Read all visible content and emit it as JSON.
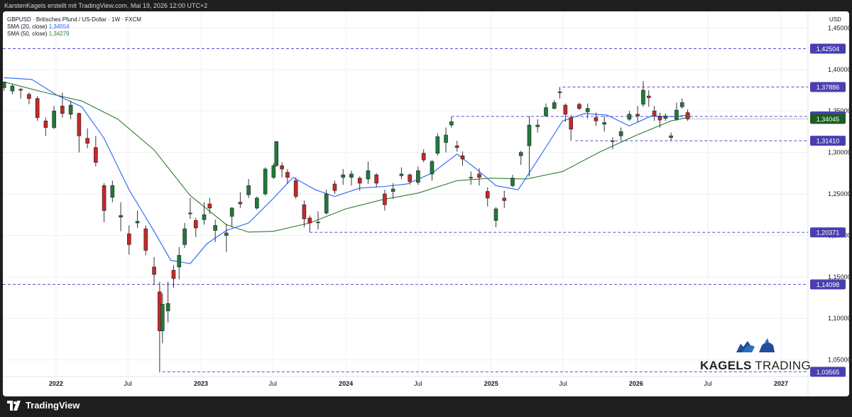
{
  "topbar": {
    "text": "KarstenKagels erstellt mit TradingView.com, Mai 19, 2026 12:00 UTC+2"
  },
  "legend": {
    "title": "GBPUSD · Britisches Pfund / US-Dollar · 1W · FXCM",
    "sma20_label": "SMA (20, close)",
    "sma20_value": "1,34554",
    "sma50_label": "SMA (50, close)",
    "sma50_value": "1,34279"
  },
  "brand": {
    "part1": "KAGELS",
    "part2": "TRADING"
  },
  "footer": {
    "logo_text": "TradingView"
  },
  "colors": {
    "up": "#26a69a",
    "down": "#ef5350",
    "candle_up": "#1f7a3a",
    "candle_down": "#c62828",
    "sma20": "#2962ff",
    "sma50": "#2e7d32",
    "level_line": "#5b4bd1",
    "level_tag": "#4a3fb0",
    "current_tag": "#1b5e20"
  },
  "chart_data": {
    "type": "candlestick",
    "title": "GBPUSD · Britisches Pfund / US-Dollar · 1W · FXCM",
    "y_axis_unit": "USD",
    "y_ticks": [
      "1,45000",
      "1,40000",
      "1,35000",
      "1,30000",
      "1,25000",
      "1,20000",
      "1,15000",
      "1,10000",
      "1,05000"
    ],
    "y_tick_values": [
      1.45,
      1.4,
      1.35,
      1.3,
      1.25,
      1.2,
      1.15,
      1.1,
      1.05
    ],
    "ylim": [
      1.03,
      1.47
    ],
    "x_ticks": [
      "2022",
      "Jul",
      "2023",
      "Jul",
      "2024",
      "Jul",
      "2025",
      "Jul",
      "2026",
      "Jul",
      "2027"
    ],
    "x_tick_dates": [
      "2022-01-01",
      "2022-07-01",
      "2023-01-01",
      "2023-07-01",
      "2024-01-01",
      "2024-07-01",
      "2025-01-01",
      "2025-07-01",
      "2026-01-01",
      "2026-07-01",
      "2027-01-01"
    ],
    "xlim": [
      "2021-08-20",
      "2027-03-10"
    ],
    "levels": [
      {
        "value": 1.42504,
        "label": "1,42504",
        "style": "dashed",
        "start": "2021-08-20"
      },
      {
        "value": 1.37886,
        "label": "1,37886",
        "style": "dashed",
        "start": "2025-06-30"
      },
      {
        "value": 1.3434,
        "label": "1,34340",
        "style": "dashed",
        "start": "2024-09-23"
      },
      {
        "value": 1.3141,
        "label": "1,31410",
        "style": "dashed",
        "start": "2025-08-01"
      },
      {
        "value": 1.20371,
        "label": "1,20371",
        "style": "dashed",
        "start": "2023-10-02"
      },
      {
        "value": 1.14098,
        "label": "1,14098",
        "style": "dashed",
        "start": "2021-08-20"
      },
      {
        "value": 1.03565,
        "label": "1,03565",
        "style": "dashed",
        "start": "2022-09-26"
      }
    ],
    "current": {
      "value": 1.34045,
      "label": "1,34045"
    },
    "candles": [
      [
        "2021-08-23",
        1.378,
        1.385,
        1.378,
        1.374
      ],
      [
        "2021-09-13",
        1.374,
        1.38,
        1.382,
        1.37
      ],
      [
        "2021-10-04",
        1.376,
        1.375,
        1.378,
        1.365
      ],
      [
        "2021-10-25",
        1.37,
        1.365,
        1.372,
        1.358
      ],
      [
        "2021-11-15",
        1.365,
        1.342,
        1.368,
        1.338
      ],
      [
        "2021-12-06",
        1.338,
        1.33,
        1.342,
        1.32
      ],
      [
        "2021-12-27",
        1.33,
        1.35,
        1.356,
        1.328
      ],
      [
        "2022-01-17",
        1.356,
        1.347,
        1.372,
        1.342
      ],
      [
        "2022-02-07",
        1.346,
        1.357,
        1.362,
        1.34
      ],
      [
        "2022-02-28",
        1.347,
        1.32,
        1.348,
        1.3
      ],
      [
        "2022-03-21",
        1.317,
        1.311,
        1.329,
        1.305
      ],
      [
        "2022-04-11",
        1.306,
        1.288,
        1.32,
        1.283
      ],
      [
        "2022-05-02",
        1.26,
        1.23,
        1.263,
        1.216
      ],
      [
        "2022-05-23",
        1.246,
        1.26,
        1.266,
        1.24
      ],
      [
        "2022-06-13",
        1.222,
        1.224,
        1.24,
        1.205
      ],
      [
        "2022-07-04",
        1.202,
        1.189,
        1.212,
        1.177
      ],
      [
        "2022-07-25",
        1.215,
        1.217,
        1.23,
        1.209
      ],
      [
        "2022-08-15",
        1.208,
        1.182,
        1.212,
        1.176
      ],
      [
        "2022-09-05",
        1.162,
        1.153,
        1.174,
        1.14
      ],
      [
        "2022-09-19",
        1.132,
        1.085,
        1.144,
        1.035
      ],
      [
        "2022-09-26",
        1.085,
        1.117,
        1.13,
        1.07
      ],
      [
        "2022-10-10",
        1.109,
        1.118,
        1.144,
        1.095
      ],
      [
        "2022-10-24",
        1.158,
        1.148,
        1.164,
        1.137
      ],
      [
        "2022-11-07",
        1.162,
        1.176,
        1.186,
        1.147
      ],
      [
        "2022-11-21",
        1.189,
        1.208,
        1.215,
        1.185
      ],
      [
        "2022-12-05",
        1.227,
        1.226,
        1.245,
        1.22
      ],
      [
        "2022-12-19",
        1.218,
        1.209,
        1.221,
        1.198
      ],
      [
        "2023-01-09",
        1.219,
        1.225,
        1.24,
        1.213
      ],
      [
        "2023-01-23",
        1.238,
        1.233,
        1.245,
        1.226
      ],
      [
        "2023-02-06",
        1.206,
        1.212,
        1.219,
        1.192
      ],
      [
        "2023-03-06",
        1.2,
        1.203,
        1.214,
        1.18
      ],
      [
        "2023-03-20",
        1.223,
        1.233,
        1.234,
        1.21
      ],
      [
        "2023-04-10",
        1.24,
        1.238,
        1.252,
        1.233
      ],
      [
        "2023-05-01",
        1.249,
        1.26,
        1.268,
        1.245
      ],
      [
        "2023-05-22",
        1.233,
        1.245,
        1.247,
        1.231
      ],
      [
        "2023-06-12",
        1.25,
        1.28,
        1.282,
        1.248
      ],
      [
        "2023-07-03",
        1.27,
        1.284,
        1.287,
        1.268
      ],
      [
        "2023-07-10",
        1.284,
        1.313,
        1.314,
        1.283
      ],
      [
        "2023-07-24",
        1.284,
        1.28,
        1.288,
        1.27
      ],
      [
        "2023-08-07",
        1.276,
        1.27,
        1.28,
        1.262
      ],
      [
        "2023-08-28",
        1.266,
        1.247,
        1.27,
        1.244
      ],
      [
        "2023-09-18",
        1.237,
        1.22,
        1.242,
        1.21
      ],
      [
        "2023-10-02",
        1.221,
        1.215,
        1.224,
        1.204
      ],
      [
        "2023-10-23",
        1.216,
        1.216,
        1.229,
        1.207
      ],
      [
        "2023-11-13",
        1.227,
        1.25,
        1.255,
        1.225
      ],
      [
        "2023-12-04",
        1.262,
        1.254,
        1.266,
        1.25
      ],
      [
        "2023-12-25",
        1.27,
        1.273,
        1.28,
        1.261
      ],
      [
        "2024-01-15",
        1.27,
        1.274,
        1.278,
        1.26
      ],
      [
        "2024-02-05",
        1.269,
        1.263,
        1.271,
        1.254
      ],
      [
        "2024-02-26",
        1.268,
        1.278,
        1.289,
        1.262
      ],
      [
        "2024-03-18",
        1.273,
        1.263,
        1.275,
        1.258
      ],
      [
        "2024-04-08",
        1.25,
        1.237,
        1.255,
        1.23
      ],
      [
        "2024-04-29",
        1.253,
        1.256,
        1.263,
        1.244
      ],
      [
        "2024-05-20",
        1.272,
        1.274,
        1.282,
        1.268
      ],
      [
        "2024-06-10",
        1.273,
        1.265,
        1.275,
        1.261
      ],
      [
        "2024-07-01",
        1.264,
        1.278,
        1.283,
        1.261
      ],
      [
        "2024-07-15",
        1.299,
        1.291,
        1.304,
        1.288
      ],
      [
        "2024-08-05",
        1.274,
        1.289,
        1.291,
        1.266
      ],
      [
        "2024-08-19",
        1.299,
        1.319,
        1.323,
        1.296
      ],
      [
        "2024-09-09",
        1.312,
        1.321,
        1.33,
        1.3
      ],
      [
        "2024-09-23",
        1.333,
        1.337,
        1.343,
        1.33
      ],
      [
        "2024-10-07",
        1.308,
        1.306,
        1.314,
        1.301
      ],
      [
        "2024-10-21",
        1.296,
        1.292,
        1.301,
        1.284
      ],
      [
        "2024-11-11",
        1.27,
        1.27,
        1.277,
        1.261
      ],
      [
        "2024-12-02",
        1.274,
        1.27,
        1.281,
        1.26
      ],
      [
        "2024-12-23",
        1.253,
        1.245,
        1.258,
        1.235
      ],
      [
        "2025-01-13",
        1.218,
        1.232,
        1.234,
        1.21
      ],
      [
        "2025-02-03",
        1.245,
        1.242,
        1.254,
        1.233
      ],
      [
        "2025-02-24",
        1.26,
        1.269,
        1.273,
        1.258
      ],
      [
        "2025-03-17",
        1.296,
        1.3,
        1.302,
        1.285
      ],
      [
        "2025-04-07",
        1.308,
        1.333,
        1.344,
        1.271
      ],
      [
        "2025-04-28",
        1.331,
        1.333,
        1.34,
        1.324
      ],
      [
        "2025-05-19",
        1.344,
        1.354,
        1.359,
        1.343
      ],
      [
        "2025-06-09",
        1.353,
        1.36,
        1.363,
        1.352
      ],
      [
        "2025-06-23",
        1.373,
        1.372,
        1.379,
        1.365
      ],
      [
        "2025-07-07",
        1.357,
        1.346,
        1.359,
        1.337
      ],
      [
        "2025-07-21",
        1.342,
        1.328,
        1.345,
        1.314
      ],
      [
        "2025-08-11",
        1.358,
        1.353,
        1.36,
        1.351
      ],
      [
        "2025-09-01",
        1.349,
        1.353,
        1.359,
        1.341
      ],
      [
        "2025-09-22",
        1.342,
        1.338,
        1.348,
        1.332
      ],
      [
        "2025-10-13",
        1.334,
        1.336,
        1.344,
        1.325
      ],
      [
        "2025-11-03",
        1.314,
        1.314,
        1.318,
        1.304
      ],
      [
        "2025-11-24",
        1.32,
        1.325,
        1.33,
        1.315
      ],
      [
        "2025-12-15",
        1.34,
        1.346,
        1.35,
        1.338
      ],
      [
        "2026-01-05",
        1.346,
        1.344,
        1.356,
        1.337
      ],
      [
        "2026-01-19",
        1.358,
        1.375,
        1.386,
        1.355
      ],
      [
        "2026-02-02",
        1.368,
        1.366,
        1.375,
        1.355
      ],
      [
        "2026-02-16",
        1.35,
        1.344,
        1.356,
        1.338
      ],
      [
        "2026-03-02",
        1.343,
        1.339,
        1.348,
        1.33
      ],
      [
        "2026-03-16",
        1.341,
        1.344,
        1.347,
        1.338
      ],
      [
        "2026-03-30",
        1.318,
        1.32,
        1.324,
        1.314
      ],
      [
        "2026-04-13",
        1.34,
        1.351,
        1.36,
        1.338
      ],
      [
        "2026-04-27",
        1.355,
        1.36,
        1.365,
        1.353
      ],
      [
        "2026-05-11",
        1.348,
        1.3404,
        1.352,
        1.338
      ]
    ],
    "sma20": [
      [
        "2021-08-23",
        1.39
      ],
      [
        "2021-11-01",
        1.388
      ],
      [
        "2022-01-03",
        1.369
      ],
      [
        "2022-03-07",
        1.355
      ],
      [
        "2022-05-02",
        1.317
      ],
      [
        "2022-07-04",
        1.255
      ],
      [
        "2022-09-05",
        1.205
      ],
      [
        "2022-10-17",
        1.17
      ],
      [
        "2022-12-05",
        1.166
      ],
      [
        "2023-01-16",
        1.19
      ],
      [
        "2023-03-06",
        1.206
      ],
      [
        "2023-05-01",
        1.215
      ],
      [
        "2023-07-03",
        1.245
      ],
      [
        "2023-08-21",
        1.27
      ],
      [
        "2023-10-16",
        1.255
      ],
      [
        "2023-12-04",
        1.247
      ],
      [
        "2024-02-05",
        1.257
      ],
      [
        "2024-04-08",
        1.259
      ],
      [
        "2024-06-03",
        1.262
      ],
      [
        "2024-08-05",
        1.275
      ],
      [
        "2024-10-07",
        1.298
      ],
      [
        "2024-11-25",
        1.28
      ],
      [
        "2025-01-13",
        1.26
      ],
      [
        "2025-03-10",
        1.255
      ],
      [
        "2025-05-05",
        1.296
      ],
      [
        "2025-06-30",
        1.338
      ],
      [
        "2025-08-25",
        1.347
      ],
      [
        "2025-10-20",
        1.345
      ],
      [
        "2025-12-15",
        1.332
      ],
      [
        "2026-02-09",
        1.344
      ],
      [
        "2026-04-06",
        1.343
      ],
      [
        "2026-05-18",
        1.3455
      ]
    ],
    "sma50": [
      [
        "2021-08-23",
        1.385
      ],
      [
        "2021-12-06",
        1.372
      ],
      [
        "2022-03-07",
        1.362
      ],
      [
        "2022-06-06",
        1.34
      ],
      [
        "2022-09-05",
        1.303
      ],
      [
        "2022-12-05",
        1.248
      ],
      [
        "2023-03-06",
        1.213
      ],
      [
        "2023-05-01",
        1.204
      ],
      [
        "2023-07-03",
        1.205
      ],
      [
        "2023-10-02",
        1.215
      ],
      [
        "2024-01-01",
        1.232
      ],
      [
        "2024-04-01",
        1.243
      ],
      [
        "2024-07-01",
        1.251
      ],
      [
        "2024-10-07",
        1.266
      ],
      [
        "2024-12-30",
        1.269
      ],
      [
        "2025-03-31",
        1.268
      ],
      [
        "2025-06-30",
        1.277
      ],
      [
        "2025-09-29",
        1.3
      ],
      [
        "2025-12-29",
        1.32
      ],
      [
        "2026-03-30",
        1.338
      ],
      [
        "2026-05-18",
        1.3428
      ]
    ]
  }
}
